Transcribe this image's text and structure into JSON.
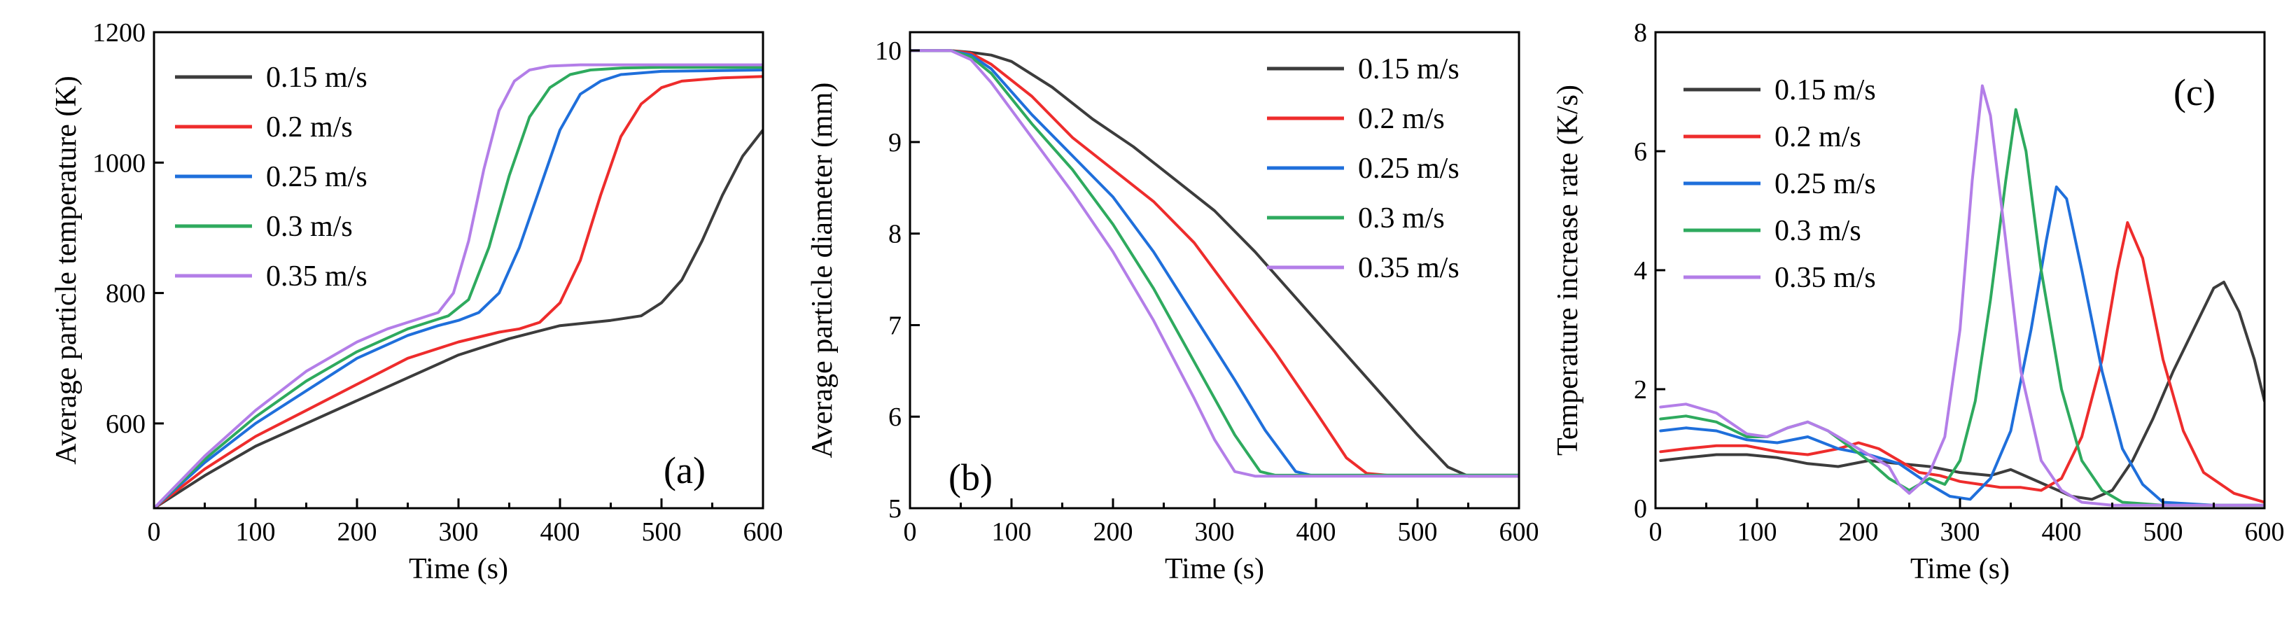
{
  "chart_data": [
    {
      "type": "line",
      "panel_label": "(a)",
      "xlabel": "Time (s)",
      "ylabel": "Average particle temperature (K)",
      "xlim": [
        0,
        600
      ],
      "ylim": [
        470,
        1200
      ],
      "xticks": [
        0,
        100,
        200,
        300,
        400,
        500,
        600
      ],
      "yticks": [
        600,
        800,
        1000,
        1200
      ],
      "legend_position": "top-left",
      "series": [
        {
          "name": "0.15 m/s",
          "color": "#3c3c3c",
          "x": [
            0,
            50,
            100,
            150,
            200,
            250,
            300,
            350,
            400,
            450,
            480,
            500,
            520,
            540,
            560,
            580,
            600
          ],
          "y": [
            470,
            520,
            565,
            600,
            635,
            670,
            705,
            730,
            750,
            758,
            765,
            785,
            820,
            880,
            950,
            1010,
            1050
          ]
        },
        {
          "name": "0.2 m/s",
          "color": "#ee2c2c",
          "x": [
            0,
            50,
            100,
            150,
            200,
            250,
            300,
            340,
            360,
            380,
            400,
            420,
            440,
            460,
            480,
            500,
            520,
            560,
            600
          ],
          "y": [
            470,
            530,
            580,
            620,
            660,
            700,
            725,
            740,
            745,
            755,
            785,
            850,
            950,
            1040,
            1090,
            1115,
            1125,
            1130,
            1132
          ]
        },
        {
          "name": "0.25 m/s",
          "color": "#1f6fdb",
          "x": [
            0,
            50,
            100,
            150,
            200,
            250,
            280,
            300,
            320,
            340,
            360,
            380,
            400,
            420,
            440,
            460,
            500,
            600
          ],
          "y": [
            470,
            540,
            600,
            650,
            700,
            735,
            750,
            758,
            770,
            800,
            870,
            960,
            1050,
            1105,
            1125,
            1135,
            1140,
            1142
          ]
        },
        {
          "name": "0.3 m/s",
          "color": "#2eaa5e",
          "x": [
            0,
            50,
            100,
            150,
            200,
            250,
            270,
            290,
            310,
            330,
            350,
            370,
            390,
            410,
            430,
            460,
            500,
            600
          ],
          "y": [
            470,
            545,
            610,
            665,
            710,
            745,
            755,
            765,
            790,
            870,
            980,
            1070,
            1115,
            1135,
            1142,
            1145,
            1146,
            1146
          ]
        },
        {
          "name": "0.35 m/s",
          "color": "#b37ee8",
          "x": [
            0,
            50,
            100,
            150,
            200,
            230,
            260,
            280,
            295,
            310,
            325,
            340,
            355,
            370,
            390,
            420,
            460,
            600
          ],
          "y": [
            470,
            550,
            620,
            680,
            725,
            745,
            760,
            770,
            800,
            880,
            990,
            1080,
            1125,
            1142,
            1148,
            1150,
            1150,
            1150
          ]
        }
      ]
    },
    {
      "type": "line",
      "panel_label": "(b)",
      "xlabel": "Time (s)",
      "ylabel": "Average particle diameter (mm)",
      "xlim": [
        0,
        600
      ],
      "ylim": [
        5,
        10.2
      ],
      "xticks": [
        0,
        100,
        200,
        300,
        400,
        500,
        600
      ],
      "yticks": [
        5,
        6,
        7,
        8,
        9,
        10
      ],
      "legend_position": "top-right",
      "series": [
        {
          "name": "0.15 m/s",
          "color": "#3c3c3c",
          "x": [
            0,
            40,
            60,
            80,
            100,
            140,
            180,
            220,
            260,
            300,
            340,
            380,
            420,
            460,
            500,
            530,
            550,
            560,
            580,
            600
          ],
          "y": [
            10,
            10,
            9.98,
            9.95,
            9.88,
            9.6,
            9.25,
            8.95,
            8.6,
            8.25,
            7.8,
            7.3,
            6.8,
            6.3,
            5.8,
            5.45,
            5.35,
            5.35,
            5.35,
            5.35
          ]
        },
        {
          "name": "0.2 m/s",
          "color": "#ee2c2c",
          "x": [
            0,
            40,
            60,
            80,
            120,
            160,
            200,
            240,
            280,
            320,
            360,
            400,
            430,
            450,
            470,
            600
          ],
          "y": [
            10,
            10,
            9.97,
            9.85,
            9.5,
            9.05,
            8.7,
            8.35,
            7.9,
            7.3,
            6.7,
            6.05,
            5.55,
            5.38,
            5.36,
            5.36
          ]
        },
        {
          "name": "0.25 m/s",
          "color": "#1f6fdb",
          "x": [
            0,
            40,
            60,
            80,
            120,
            160,
            200,
            240,
            280,
            320,
            350,
            380,
            395,
            410,
            600
          ],
          "y": [
            10,
            10,
            9.95,
            9.8,
            9.3,
            8.85,
            8.4,
            7.8,
            7.1,
            6.4,
            5.85,
            5.4,
            5.36,
            5.36,
            5.36
          ]
        },
        {
          "name": "0.3 m/s",
          "color": "#2eaa5e",
          "x": [
            0,
            40,
            60,
            80,
            120,
            160,
            200,
            240,
            280,
            320,
            345,
            360,
            600
          ],
          "y": [
            10,
            10,
            9.93,
            9.75,
            9.2,
            8.7,
            8.1,
            7.4,
            6.6,
            5.8,
            5.4,
            5.36,
            5.36
          ]
        },
        {
          "name": "0.35 m/s",
          "color": "#b37ee8",
          "x": [
            0,
            40,
            60,
            80,
            120,
            160,
            200,
            240,
            280,
            300,
            320,
            340,
            600
          ],
          "y": [
            10,
            10,
            9.9,
            9.65,
            9.05,
            8.45,
            7.8,
            7.05,
            6.2,
            5.75,
            5.4,
            5.35,
            5.35
          ]
        }
      ]
    },
    {
      "type": "line",
      "panel_label": "(c)",
      "xlabel": "Time (s)",
      "ylabel": "Temperature increase rate (K/s)",
      "xlim": [
        0,
        600
      ],
      "ylim": [
        0,
        8
      ],
      "xticks": [
        0,
        100,
        200,
        300,
        400,
        500,
        600
      ],
      "yticks": [
        0,
        2,
        4,
        6,
        8
      ],
      "legend_position": "top-left",
      "series": [
        {
          "name": "0.15 m/s",
          "color": "#3c3c3c",
          "x": [
            5,
            30,
            60,
            90,
            120,
            150,
            180,
            210,
            240,
            270,
            300,
            330,
            350,
            370,
            390,
            410,
            430,
            450,
            470,
            490,
            510,
            530,
            550,
            560,
            575,
            590,
            600
          ],
          "y": [
            0.8,
            0.85,
            0.9,
            0.9,
            0.85,
            0.75,
            0.7,
            0.8,
            0.75,
            0.7,
            0.6,
            0.55,
            0.65,
            0.5,
            0.35,
            0.2,
            0.15,
            0.3,
            0.8,
            1.5,
            2.3,
            3.0,
            3.7,
            3.8,
            3.3,
            2.5,
            1.8
          ]
        },
        {
          "name": "0.2 m/s",
          "color": "#ee2c2c",
          "x": [
            5,
            30,
            60,
            90,
            120,
            150,
            180,
            200,
            220,
            240,
            260,
            280,
            300,
            320,
            340,
            360,
            380,
            400,
            420,
            440,
            455,
            465,
            480,
            500,
            520,
            540,
            570,
            600
          ],
          "y": [
            0.95,
            1.0,
            1.05,
            1.05,
            0.95,
            0.9,
            1.0,
            1.1,
            1.0,
            0.8,
            0.6,
            0.55,
            0.45,
            0.4,
            0.35,
            0.35,
            0.3,
            0.5,
            1.2,
            2.5,
            4.0,
            4.8,
            4.2,
            2.5,
            1.3,
            0.6,
            0.25,
            0.1
          ]
        },
        {
          "name": "0.25 m/s",
          "color": "#1f6fdb",
          "x": [
            5,
            30,
            60,
            90,
            120,
            150,
            180,
            210,
            240,
            270,
            290,
            310,
            330,
            350,
            370,
            385,
            395,
            405,
            420,
            440,
            460,
            480,
            500,
            550,
            600
          ],
          "y": [
            1.3,
            1.35,
            1.3,
            1.15,
            1.1,
            1.2,
            1.0,
            0.9,
            0.75,
            0.4,
            0.2,
            0.15,
            0.5,
            1.3,
            3.0,
            4.5,
            5.4,
            5.2,
            4.0,
            2.3,
            1.0,
            0.4,
            0.1,
            0.05,
            0.05
          ]
        },
        {
          "name": "0.3 m/s",
          "color": "#2eaa5e",
          "x": [
            5,
            30,
            60,
            90,
            110,
            130,
            150,
            170,
            190,
            210,
            230,
            250,
            270,
            285,
            300,
            315,
            330,
            345,
            355,
            365,
            380,
            400,
            420,
            440,
            460,
            500,
            600
          ],
          "y": [
            1.5,
            1.55,
            1.45,
            1.2,
            1.2,
            1.35,
            1.45,
            1.3,
            1.05,
            0.8,
            0.5,
            0.3,
            0.5,
            0.4,
            0.8,
            1.8,
            3.5,
            5.5,
            6.7,
            6.0,
            4.0,
            2.0,
            0.8,
            0.3,
            0.1,
            0.05,
            0.05
          ]
        },
        {
          "name": "0.35 m/s",
          "color": "#b37ee8",
          "x": [
            5,
            30,
            60,
            90,
            110,
            130,
            150,
            170,
            190,
            210,
            230,
            240,
            250,
            260,
            270,
            285,
            300,
            312,
            322,
            330,
            345,
            360,
            380,
            400,
            420,
            450,
            600
          ],
          "y": [
            1.7,
            1.75,
            1.6,
            1.25,
            1.2,
            1.35,
            1.45,
            1.3,
            1.1,
            0.9,
            0.7,
            0.4,
            0.25,
            0.4,
            0.6,
            1.2,
            3.0,
            5.5,
            7.1,
            6.6,
            4.5,
            2.3,
            0.8,
            0.3,
            0.1,
            0.05,
            0.05
          ]
        }
      ]
    }
  ]
}
